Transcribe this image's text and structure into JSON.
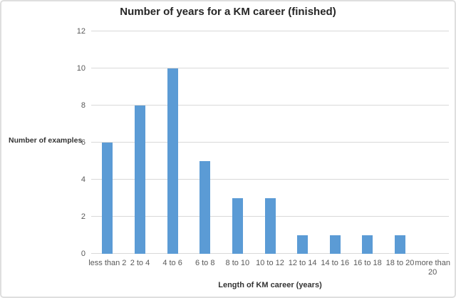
{
  "chart_data": {
    "type": "bar",
    "title": "Number of years for a KM career (finished)",
    "xlabel": "Length of KM career (years)",
    "ylabel": "Number of examples",
    "categories": [
      "less than 2",
      "2 to 4",
      "4 to 6",
      "6 to 8",
      "8 to 10",
      "10 to 12",
      "12 to 14",
      "14 to 16",
      "16 to 18",
      "18 to 20",
      "more than 20"
    ],
    "values": [
      6,
      8,
      10,
      5,
      3,
      3,
      1,
      1,
      1,
      1,
      0
    ],
    "xtick_display": [
      "less than 2",
      "2 to 4",
      "4 to 6",
      "6 to 8",
      "8 to 10",
      "10 to 12",
      "12 to 14",
      "14 to 16",
      "16 to 18",
      "18 to 20",
      "more than\n20"
    ],
    "ylim": [
      0,
      12
    ],
    "yticks": [
      0,
      2,
      4,
      6,
      8,
      10,
      12
    ],
    "grid": true,
    "legend": "none",
    "colors": {
      "bar": "#5B9BD5",
      "gridline": "#D9D9D9",
      "tick_label": "#595959",
      "title": "#262626",
      "axis_title": "#333333",
      "frame_border": "#DFDFDF",
      "background": "#FFFFFF"
    }
  }
}
